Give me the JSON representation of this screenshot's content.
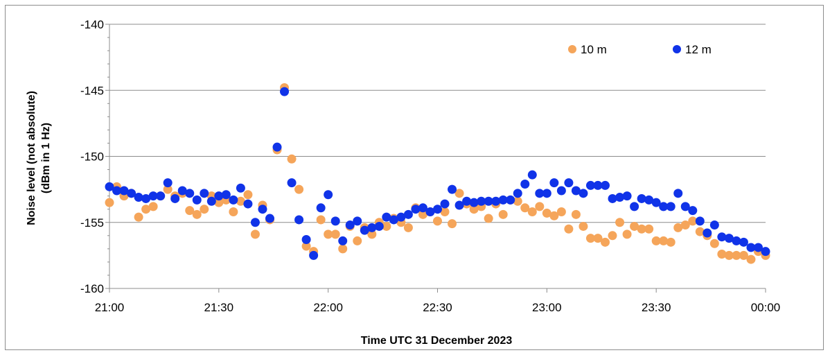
{
  "chart_data": {
    "type": "scatter",
    "xlabel": "Time UTC 31 December 2023",
    "ylabel_line1": "Noise level  (not absolute)",
    "ylabel_line2": "(dBm in 1 Hz)",
    "x_ticks": [
      "21:00",
      "21:30",
      "22:00",
      "22:30",
      "23:00",
      "23:30",
      "00:00"
    ],
    "y_ticks": [
      "-140",
      "-145",
      "-150",
      "-155",
      "-160"
    ],
    "xlim_minutes_after_21_00": [
      0,
      180
    ],
    "ylim": [
      -160,
      -140
    ],
    "grid": true,
    "legend_position": "top-right",
    "series": [
      {
        "name": "10 m",
        "color": "#f5a55a",
        "points": [
          [
            "21:00",
            -153.5
          ],
          [
            "21:02",
            -152.3
          ],
          [
            "21:04",
            -153.0
          ],
          [
            "21:06",
            -152.8
          ],
          [
            "21:08",
            -154.6
          ],
          [
            "21:10",
            -154.0
          ],
          [
            "21:12",
            -153.8
          ],
          [
            "21:14",
            -153.0
          ],
          [
            "21:16",
            -152.5
          ],
          [
            "21:18",
            -153.0
          ],
          [
            "21:20",
            -152.8
          ],
          [
            "21:22",
            -154.1
          ],
          [
            "21:24",
            -154.4
          ],
          [
            "21:26",
            -154.0
          ],
          [
            "21:28",
            -153.0
          ],
          [
            "21:30",
            -153.5
          ],
          [
            "21:32",
            -153.3
          ],
          [
            "21:34",
            -154.2
          ],
          [
            "21:36",
            -153.4
          ],
          [
            "21:38",
            -152.9
          ],
          [
            "21:40",
            -155.9
          ],
          [
            "21:42",
            -153.7
          ],
          [
            "21:44",
            -154.8
          ],
          [
            "21:46",
            -149.5
          ],
          [
            "21:48",
            -144.8
          ],
          [
            "21:50",
            -150.2
          ],
          [
            "21:52",
            -152.5
          ],
          [
            "21:54",
            -156.8
          ],
          [
            "21:56",
            -157.2
          ],
          [
            "21:58",
            -154.8
          ],
          [
            "22:00",
            -155.9
          ],
          [
            "22:02",
            -155.9
          ],
          [
            "22:04",
            -157.0
          ],
          [
            "22:06",
            -155.3
          ],
          [
            "22:08",
            -156.4
          ],
          [
            "22:10",
            -155.4
          ],
          [
            "22:12",
            -155.9
          ],
          [
            "22:14",
            -155.0
          ],
          [
            "22:16",
            -155.3
          ],
          [
            "22:18",
            -154.7
          ],
          [
            "22:20",
            -155.0
          ],
          [
            "22:22",
            -155.4
          ],
          [
            "22:24",
            -153.9
          ],
          [
            "22:26",
            -154.4
          ],
          [
            "22:28",
            -154.2
          ],
          [
            "22:30",
            -154.9
          ],
          [
            "22:32",
            -154.2
          ],
          [
            "22:34",
            -155.1
          ],
          [
            "22:36",
            -152.8
          ],
          [
            "22:38",
            -153.6
          ],
          [
            "22:40",
            -154.0
          ],
          [
            "22:42",
            -153.8
          ],
          [
            "22:44",
            -154.7
          ],
          [
            "22:46",
            -153.6
          ],
          [
            "22:48",
            -154.4
          ],
          [
            "22:50",
            -153.3
          ],
          [
            "22:52",
            -153.4
          ],
          [
            "22:54",
            -153.9
          ],
          [
            "22:56",
            -154.2
          ],
          [
            "22:58",
            -153.8
          ],
          [
            "23:00",
            -154.3
          ],
          [
            "23:02",
            -154.5
          ],
          [
            "23:04",
            -154.2
          ],
          [
            "23:06",
            -155.5
          ],
          [
            "23:08",
            -154.4
          ],
          [
            "23:10",
            -155.3
          ],
          [
            "23:12",
            -156.2
          ],
          [
            "23:14",
            -156.2
          ],
          [
            "23:16",
            -156.5
          ],
          [
            "23:18",
            -156.0
          ],
          [
            "23:20",
            -155.0
          ],
          [
            "23:22",
            -155.9
          ],
          [
            "23:24",
            -155.3
          ],
          [
            "23:26",
            -155.5
          ],
          [
            "23:28",
            -155.5
          ],
          [
            "23:30",
            -156.4
          ],
          [
            "23:32",
            -156.4
          ],
          [
            "23:34",
            -156.5
          ],
          [
            "23:36",
            -155.4
          ],
          [
            "23:38",
            -155.2
          ],
          [
            "23:40",
            -154.9
          ],
          [
            "23:42",
            -155.7
          ],
          [
            "23:44",
            -156.0
          ],
          [
            "23:46",
            -156.6
          ],
          [
            "23:48",
            -157.4
          ],
          [
            "23:50",
            -157.5
          ],
          [
            "23:52",
            -157.5
          ],
          [
            "23:54",
            -157.5
          ],
          [
            "23:56",
            -157.8
          ],
          [
            "23:58",
            -157.2
          ],
          [
            "00:00",
            -157.5
          ]
        ]
      },
      {
        "name": "12 m",
        "color": "#1033e8",
        "points": [
          [
            "21:00",
            -152.3
          ],
          [
            "21:02",
            -152.6
          ],
          [
            "21:04",
            -152.6
          ],
          [
            "21:06",
            -152.8
          ],
          [
            "21:08",
            -153.1
          ],
          [
            "21:10",
            -153.2
          ],
          [
            "21:12",
            -153.0
          ],
          [
            "21:14",
            -153.0
          ],
          [
            "21:16",
            -152.0
          ],
          [
            "21:18",
            -153.2
          ],
          [
            "21:20",
            -152.6
          ],
          [
            "21:22",
            -152.8
          ],
          [
            "21:24",
            -153.3
          ],
          [
            "21:26",
            -152.8
          ],
          [
            "21:28",
            -153.4
          ],
          [
            "21:30",
            -153.0
          ],
          [
            "21:32",
            -152.9
          ],
          [
            "21:34",
            -153.3
          ],
          [
            "21:36",
            -152.4
          ],
          [
            "21:38",
            -153.6
          ],
          [
            "21:40",
            -155.0
          ],
          [
            "21:42",
            -154.0
          ],
          [
            "21:44",
            -154.7
          ],
          [
            "21:46",
            -149.3
          ],
          [
            "21:48",
            -145.1
          ],
          [
            "21:50",
            -152.0
          ],
          [
            "21:52",
            -154.8
          ],
          [
            "21:54",
            -156.3
          ],
          [
            "21:56",
            -157.5
          ],
          [
            "21:58",
            -153.9
          ],
          [
            "22:00",
            -152.9
          ],
          [
            "22:02",
            -154.9
          ],
          [
            "22:04",
            -156.4
          ],
          [
            "22:06",
            -155.2
          ],
          [
            "22:08",
            -154.9
          ],
          [
            "22:10",
            -155.6
          ],
          [
            "22:12",
            -155.4
          ],
          [
            "22:14",
            -155.3
          ],
          [
            "22:16",
            -154.6
          ],
          [
            "22:18",
            -154.8
          ],
          [
            "22:20",
            -154.6
          ],
          [
            "22:22",
            -154.4
          ],
          [
            "22:24",
            -154.0
          ],
          [
            "22:26",
            -153.9
          ],
          [
            "22:28",
            -154.2
          ],
          [
            "22:30",
            -154.0
          ],
          [
            "22:32",
            -153.6
          ],
          [
            "22:34",
            -152.5
          ],
          [
            "22:36",
            -153.7
          ],
          [
            "22:38",
            -153.4
          ],
          [
            "22:40",
            -153.5
          ],
          [
            "22:42",
            -153.4
          ],
          [
            "22:44",
            -153.4
          ],
          [
            "22:46",
            -153.4
          ],
          [
            "22:48",
            -153.3
          ],
          [
            "22:50",
            -153.3
          ],
          [
            "22:52",
            -152.8
          ],
          [
            "22:54",
            -152.1
          ],
          [
            "22:56",
            -151.4
          ],
          [
            "22:58",
            -152.8
          ],
          [
            "23:00",
            -152.8
          ],
          [
            "23:02",
            -152.0
          ],
          [
            "23:04",
            -152.6
          ],
          [
            "23:06",
            -152.0
          ],
          [
            "23:08",
            -152.6
          ],
          [
            "23:10",
            -152.8
          ],
          [
            "23:12",
            -152.2
          ],
          [
            "23:14",
            -152.2
          ],
          [
            "23:16",
            -152.2
          ],
          [
            "23:18",
            -153.2
          ],
          [
            "23:20",
            -153.1
          ],
          [
            "23:22",
            -153.0
          ],
          [
            "23:24",
            -153.8
          ],
          [
            "23:26",
            -153.2
          ],
          [
            "23:28",
            -153.3
          ],
          [
            "23:30",
            -153.5
          ],
          [
            "23:32",
            -153.8
          ],
          [
            "23:34",
            -153.8
          ],
          [
            "23:36",
            -152.8
          ],
          [
            "23:38",
            -153.8
          ],
          [
            "23:40",
            -154.1
          ],
          [
            "23:42",
            -154.9
          ],
          [
            "23:44",
            -155.8
          ],
          [
            "23:46",
            -155.2
          ],
          [
            "23:48",
            -156.1
          ],
          [
            "23:50",
            -156.2
          ],
          [
            "23:52",
            -156.4
          ],
          [
            "23:54",
            -156.5
          ],
          [
            "23:56",
            -156.9
          ],
          [
            "23:58",
            -156.9
          ],
          [
            "00:00",
            -157.2
          ]
        ]
      }
    ]
  }
}
